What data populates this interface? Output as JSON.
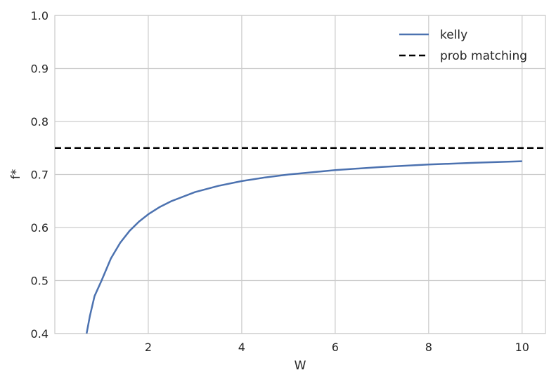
{
  "chart_data": {
    "type": "line",
    "title": "",
    "xlabel": "W",
    "ylabel": "f*",
    "xlim": [
      0.0,
      10.5
    ],
    "ylim": [
      0.4,
      1.0
    ],
    "xticks": [
      2,
      4,
      6,
      8,
      10
    ],
    "xtick_labels": [
      "2",
      "4",
      "6",
      "8",
      "10"
    ],
    "yticks": [
      0.4,
      0.5,
      0.6,
      0.7,
      0.8,
      0.9,
      1.0
    ],
    "ytick_labels": [
      "0.4",
      "0.5",
      "0.6",
      "0.7",
      "0.8",
      "0.9",
      "1.0"
    ],
    "grid": true,
    "legend_position": "top-right",
    "series": [
      {
        "name": "kelly",
        "style": "solid",
        "color": "#4c72b0",
        "x": [
          0.68,
          0.75,
          0.85,
          1.0,
          1.2,
          1.4,
          1.6,
          1.8,
          2.0,
          2.25,
          2.5,
          3.0,
          3.5,
          4.0,
          4.5,
          5.0,
          6.0,
          7.0,
          8.0,
          9.0,
          10.0
        ],
        "y": [
          0.4,
          0.4333,
          0.4706,
          0.5,
          0.5417,
          0.5714,
          0.5938,
          0.6111,
          0.625,
          0.6389,
          0.65,
          0.6667,
          0.6786,
          0.6875,
          0.6944,
          0.7,
          0.7083,
          0.7143,
          0.7188,
          0.7222,
          0.725
        ]
      },
      {
        "name": "prob matching",
        "style": "dashed",
        "color": "#000000",
        "x": [
          0.0,
          10.5
        ],
        "y": [
          0.75,
          0.75
        ]
      }
    ]
  }
}
